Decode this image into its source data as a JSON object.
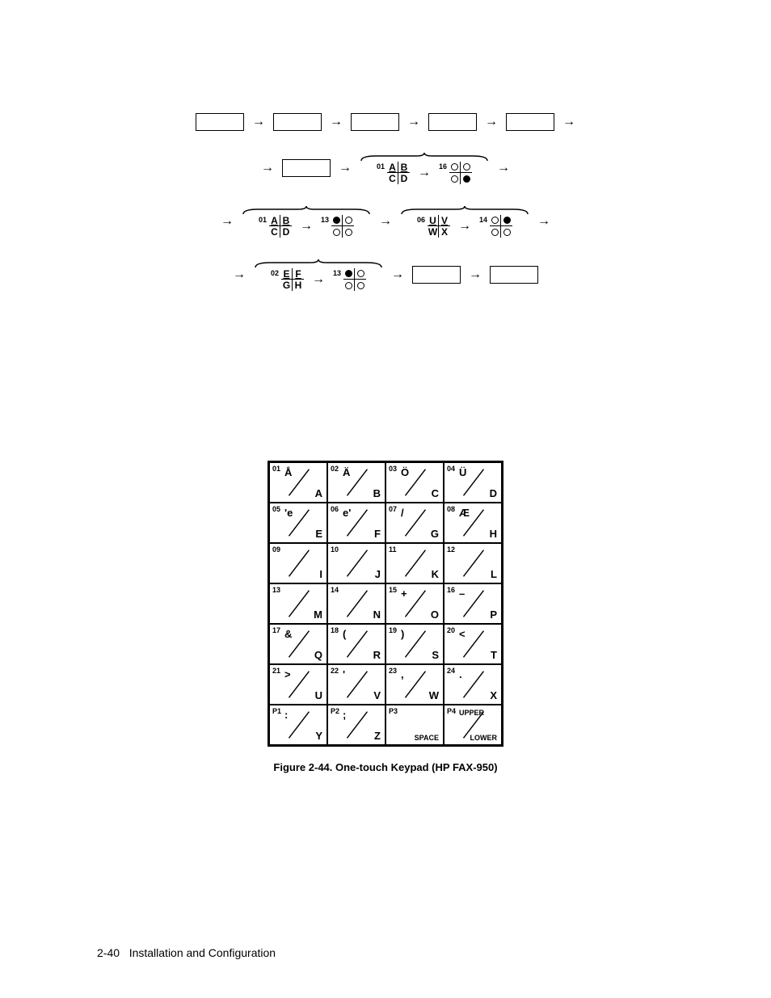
{
  "flow": {
    "row2": {
      "group": [
        {
          "num": "01",
          "quad": [
            "A",
            "B",
            "C",
            "D"
          ]
        },
        {
          "num": "16",
          "dots": [
            "o",
            "o",
            "o",
            "f"
          ]
        }
      ]
    },
    "row3": {
      "groupA": [
        {
          "num": "01",
          "quad": [
            "A",
            "B",
            "C",
            "D"
          ]
        },
        {
          "num": "13",
          "dots": [
            "f",
            "o",
            "o",
            "o"
          ]
        }
      ],
      "groupB": [
        {
          "num": "06",
          "quad": [
            "U",
            "V",
            "W",
            "X"
          ]
        },
        {
          "num": "14",
          "dots": [
            "o",
            "f",
            "o",
            "o"
          ]
        }
      ]
    },
    "row4": {
      "group": [
        {
          "num": "02",
          "quad": [
            "E",
            "F",
            "G",
            "H"
          ]
        },
        {
          "num": "13",
          "dots": [
            "f",
            "o",
            "o",
            "o"
          ]
        }
      ]
    }
  },
  "keypad": {
    "cells": [
      {
        "num": "01",
        "tl": "Å",
        "br": "A"
      },
      {
        "num": "02",
        "tl": "Ä",
        "br": "B"
      },
      {
        "num": "03",
        "tl": "Ö",
        "br": "C"
      },
      {
        "num": "04",
        "tl": "Ü",
        "br": "D"
      },
      {
        "num": "05",
        "tl": "'e",
        "br": "E"
      },
      {
        "num": "06",
        "tl": "e'",
        "br": "F"
      },
      {
        "num": "07",
        "tl": "/",
        "br": "G"
      },
      {
        "num": "08",
        "tl": "Æ",
        "br": "H"
      },
      {
        "num": "09",
        "tl": "",
        "br": "I"
      },
      {
        "num": "10",
        "tl": "",
        "br": "J"
      },
      {
        "num": "11",
        "tl": "",
        "br": "K"
      },
      {
        "num": "12",
        "tl": "",
        "br": "L"
      },
      {
        "num": "13",
        "tl": "",
        "br": "M"
      },
      {
        "num": "14",
        "tl": "",
        "br": "N"
      },
      {
        "num": "15",
        "tl": "+",
        "br": "O"
      },
      {
        "num": "16",
        "tl": "–",
        "br": "P"
      },
      {
        "num": "17",
        "tl": "&",
        "br": "Q"
      },
      {
        "num": "18",
        "tl": "(",
        "br": "R"
      },
      {
        "num": "19",
        "tl": ")",
        "br": "S"
      },
      {
        "num": "20",
        "tl": "<",
        "br": "T"
      },
      {
        "num": "21",
        "tl": ">",
        "br": "U"
      },
      {
        "num": "22",
        "tl": "'",
        "br": "V"
      },
      {
        "num": "23",
        "tl": ",",
        "br": "W"
      },
      {
        "num": "24",
        "tl": ".",
        "br": "X"
      },
      {
        "num": "P1",
        "tl": ":",
        "br": "Y"
      },
      {
        "num": "P2",
        "tl": ";",
        "br": "Z"
      },
      {
        "num": "P3",
        "tl": "",
        "br": "SPACE",
        "brSmall": true,
        "noSlash": true
      },
      {
        "num": "P4",
        "tl": "UPPER",
        "br": "LOWER",
        "brSmall": true,
        "tlSmall": true
      }
    ]
  },
  "caption": "Figure 2-44. One-touch Keypad (HP FAX-950)",
  "footer": {
    "page": "2-40",
    "section": "Installation and Configuration"
  }
}
